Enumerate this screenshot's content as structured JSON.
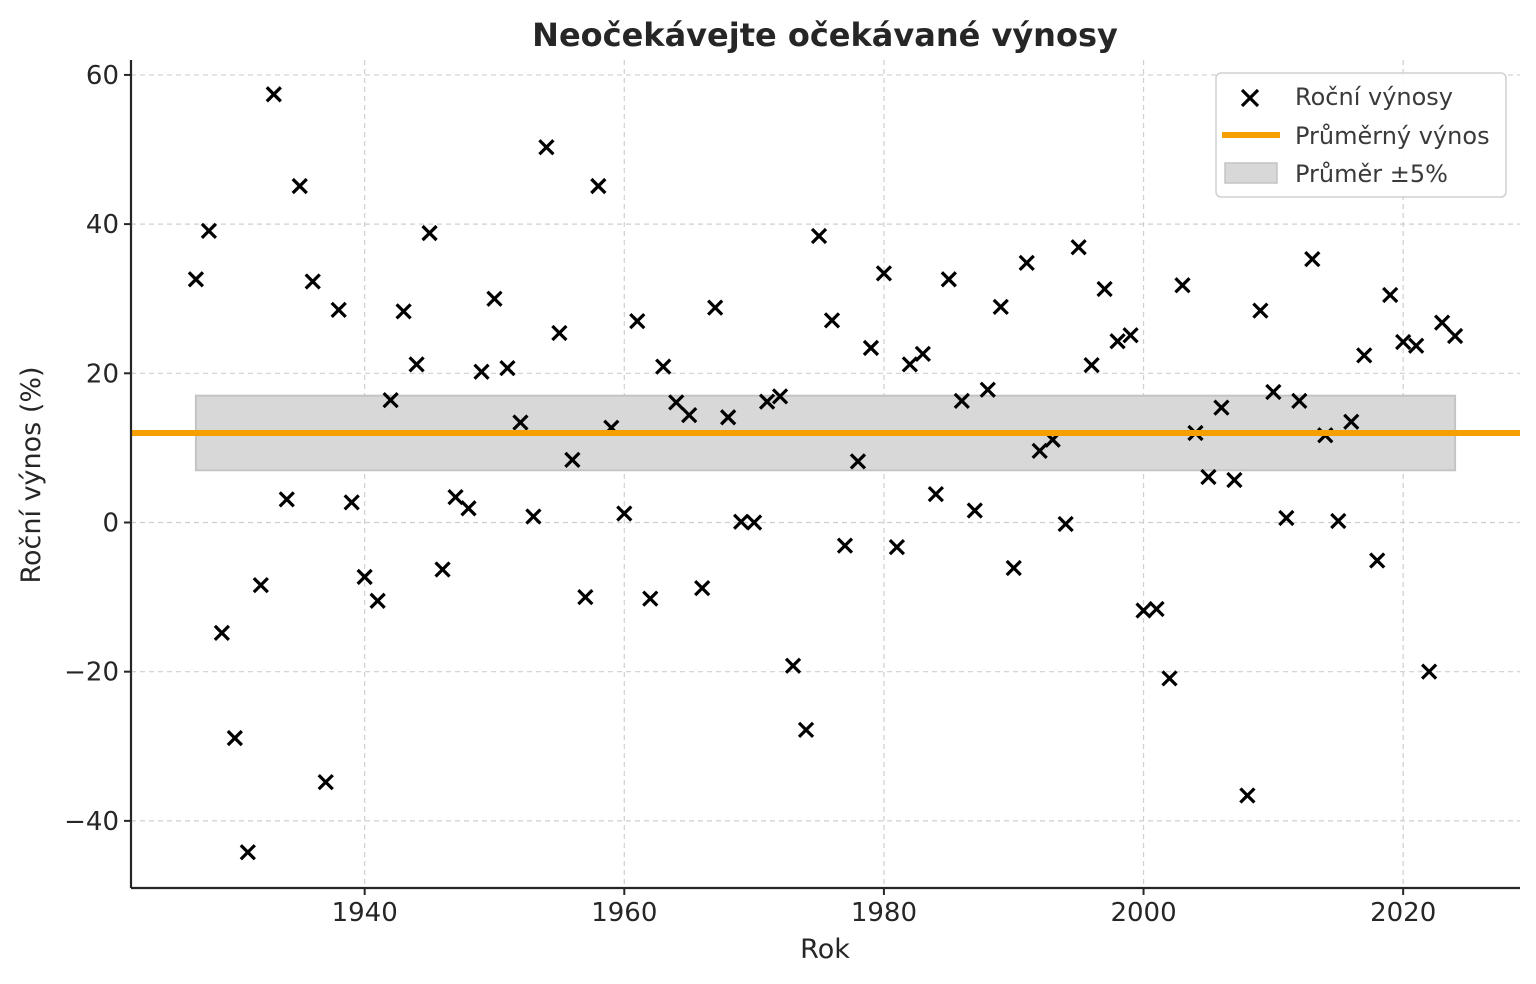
{
  "chart_data": {
    "type": "scatter",
    "title": "Neočekávejte očekávané výnosy",
    "xlabel": "Rok",
    "ylabel": "Roční výnos (%)",
    "xlim": [
      1922,
      2029
    ],
    "ylim": [
      -49,
      62
    ],
    "xticks": [
      1940,
      1960,
      1980,
      2000,
      2020
    ],
    "yticks": [
      -40,
      -20,
      0,
      20,
      40,
      60
    ],
    "xtick_labels": [
      "1940",
      "1960",
      "1980",
      "2000",
      "2020"
    ],
    "ytick_labels": [
      "−40",
      "−20",
      "0",
      "20",
      "40",
      "60"
    ],
    "grid": true,
    "legend_position": "top-right",
    "mean": 12.0,
    "band": [
      7.0,
      17.0
    ],
    "band_x": [
      1927,
      2024
    ],
    "colors": {
      "markers": "#000000",
      "mean_line": "#f5a000",
      "band_fill": "#d8d8d8",
      "band_edge": "#c4c4c4"
    },
    "legend": [
      {
        "label": "Roční výnosy",
        "kind": "marker"
      },
      {
        "label": "Průměrný výnos",
        "kind": "line"
      },
      {
        "label": "Průměr ±5%",
        "kind": "band"
      }
    ],
    "series": [
      {
        "name": "Roční výnosy",
        "x": [
          1927,
          1928,
          1929,
          1930,
          1931,
          1932,
          1933,
          1934,
          1935,
          1936,
          1937,
          1938,
          1939,
          1940,
          1941,
          1942,
          1943,
          1944,
          1945,
          1946,
          1947,
          1948,
          1949,
          1950,
          1951,
          1952,
          1953,
          1954,
          1955,
          1956,
          1957,
          1958,
          1959,
          1960,
          1961,
          1962,
          1963,
          1964,
          1965,
          1966,
          1967,
          1968,
          1969,
          1970,
          1971,
          1972,
          1973,
          1974,
          1975,
          1976,
          1977,
          1978,
          1979,
          1980,
          1981,
          1982,
          1983,
          1984,
          1985,
          1986,
          1987,
          1988,
          1989,
          1990,
          1991,
          1992,
          1993,
          1994,
          1995,
          1996,
          1997,
          1998,
          1999,
          2000,
          2001,
          2002,
          2003,
          2004,
          2005,
          2006,
          2007,
          2008,
          2009,
          2010,
          2011,
          2012,
          2013,
          2014,
          2015,
          2016,
          2017,
          2018,
          2019,
          2020,
          2021,
          2022,
          2023,
          2024
        ],
        "y": [
          32.6,
          39.1,
          -14.8,
          -28.9,
          -44.2,
          -8.4,
          57.4,
          3.1,
          45.1,
          32.3,
          -34.8,
          28.5,
          2.7,
          -7.3,
          -10.5,
          16.4,
          28.3,
          21.2,
          38.8,
          -6.3,
          3.4,
          1.9,
          20.2,
          30.0,
          20.7,
          13.4,
          0.8,
          50.3,
          25.4,
          8.4,
          -10.0,
          45.1,
          12.7,
          1.2,
          27.0,
          -10.2,
          20.9,
          16.1,
          14.4,
          -8.8,
          28.8,
          14.1,
          0.1,
          0.0,
          16.2,
          16.9,
          -19.2,
          -27.8,
          38.4,
          27.1,
          -3.1,
          8.2,
          23.4,
          33.4,
          -3.3,
          21.2,
          22.6,
          3.8,
          32.6,
          16.3,
          1.6,
          17.8,
          28.9,
          -6.1,
          34.8,
          9.6,
          11.1,
          -0.2,
          36.9,
          21.1,
          31.3,
          24.3,
          25.1,
          -11.8,
          -11.6,
          -20.9,
          31.8,
          12.0,
          6.1,
          15.4,
          5.7,
          -36.6,
          28.4,
          17.5,
          0.6,
          16.3,
          35.3,
          11.7,
          0.2,
          13.5,
          22.4,
          -5.1,
          30.5,
          24.2,
          23.7,
          -20.0,
          26.8,
          25.0
        ]
      }
    ]
  }
}
